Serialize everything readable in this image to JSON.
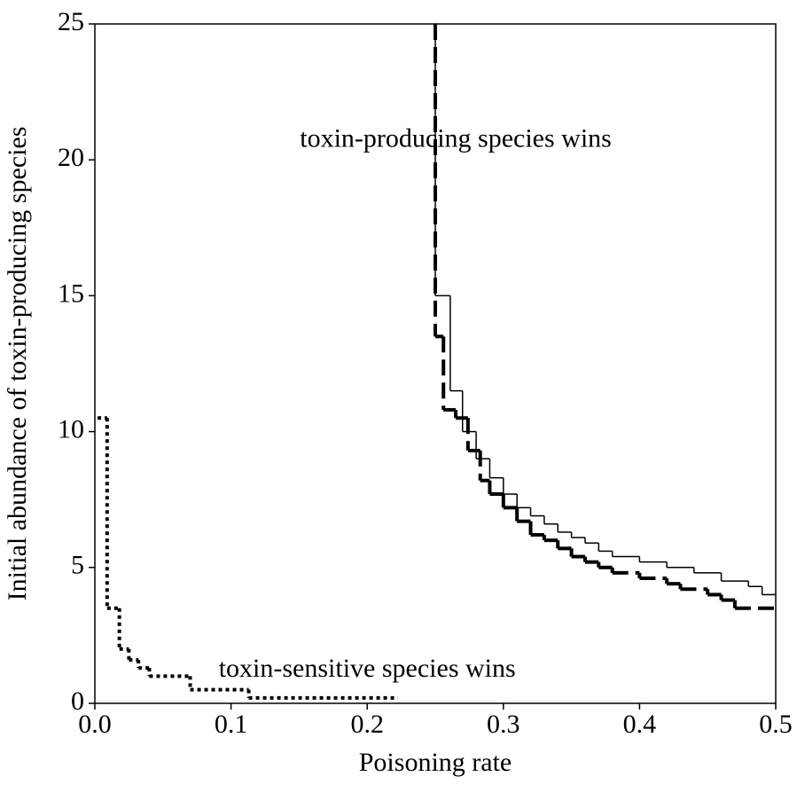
{
  "chart_data": {
    "type": "step",
    "xlabel": "Poisoning rate",
    "ylabel": "Initial abundance of toxin-producing species",
    "xlim": [
      0,
      0.5
    ],
    "ylim": [
      0,
      25
    ],
    "xticks": [
      {
        "value": 0,
        "label": "0.0"
      },
      0.1,
      0.2,
      0.3,
      0.4,
      0.5
    ],
    "yticks": [
      0,
      5,
      10,
      15,
      20,
      25
    ],
    "annotations": [
      {
        "text": "toxin-producing species wins",
        "x": 0.265,
        "y": 20.7
      },
      {
        "text": "toxin-sensitive species wins",
        "x": 0.2,
        "y": 1.2
      }
    ],
    "series": [
      {
        "color": "#000000",
        "dash": "solid",
        "x": [
          0.25,
          0.25,
          0.261,
          0.27,
          0.28,
          0.29,
          0.3,
          0.31,
          0.32,
          0.33,
          0.34,
          0.35,
          0.36,
          0.37,
          0.38,
          0.4,
          0.42,
          0.44,
          0.46,
          0.48,
          0.49,
          0.5
        ],
        "values": [
          25,
          15,
          11.5,
          10,
          9,
          8.3,
          7.7,
          7.2,
          6.9,
          6.6,
          6.3,
          6.1,
          5.9,
          5.6,
          5.4,
          5.2,
          5.0,
          4.8,
          4.5,
          4.3,
          4.0,
          4.0
        ]
      },
      {
        "color": "#000000",
        "dash": "dashed",
        "x": [
          0.25,
          0.25,
          0.256,
          0.265,
          0.274,
          0.283,
          0.29,
          0.3,
          0.31,
          0.32,
          0.33,
          0.34,
          0.35,
          0.36,
          0.37,
          0.38,
          0.4,
          0.42,
          0.43,
          0.45,
          0.46,
          0.47,
          0.5
        ],
        "values": [
          25,
          13.5,
          10.8,
          10.5,
          9.3,
          8.2,
          7.7,
          7.2,
          6.7,
          6.2,
          6.0,
          5.7,
          5.4,
          5.2,
          5.0,
          4.8,
          4.6,
          4.4,
          4.2,
          4.0,
          3.8,
          3.5,
          3.5
        ]
      },
      {
        "color": "#000000",
        "dash": "dotted",
        "x": [
          0.002,
          0.009,
          0.018,
          0.025,
          0.032,
          0.04,
          0.07,
          0.113,
          0.222
        ],
        "values": [
          10.5,
          3.5,
          2.0,
          1.6,
          1.3,
          1.0,
          0.5,
          0.2,
          0.2
        ]
      }
    ]
  }
}
